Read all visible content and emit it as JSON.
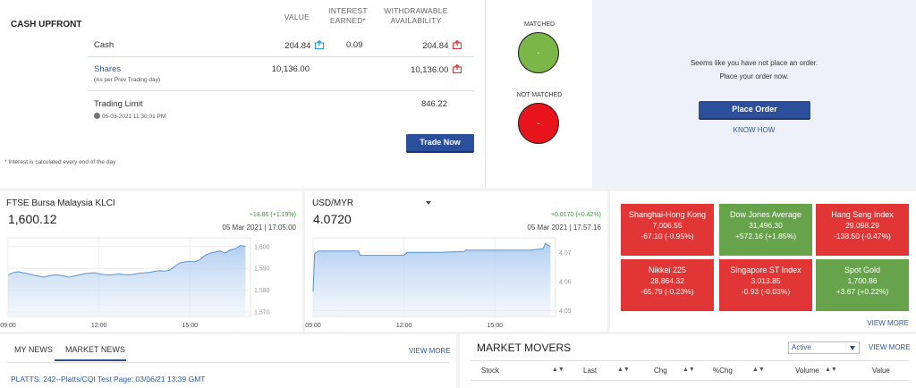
{
  "cash_upfront": {
    "title": "CASH UPFRONT",
    "col_value": "VALUE",
    "col_interest_1": "INTEREST",
    "col_interest_2": "EARNED*",
    "col_withdrawable_1": "WITHDRAWABLE",
    "col_withdrawable_2": "AVAILABILITY",
    "rows": [
      {
        "label": "Cash",
        "value": "204.84",
        "interest": "0.09",
        "available": "204.84"
      },
      {
        "label": "Shares",
        "sublabel": "(As per Prev Trading day)",
        "value": "10,136.00",
        "available": "10,136.00"
      }
    ],
    "trading_limit_label": "Trading Limit",
    "trading_limit_value": "846.22",
    "trading_limit_time": "05-03-2021 11:30:01 PM",
    "trade_now": "Trade Now",
    "footnote": "* Interest is calculated every end of the day"
  },
  "status": {
    "matched_label": "MATCHED",
    "matched_value": "-",
    "not_matched_label": "NOT MATCHED",
    "not_matched_value": "-",
    "green": "#7ab648",
    "red": "#e8141b"
  },
  "order_panel": {
    "line1": "Seems like you have not place an order.",
    "line2": "Place your order now.",
    "place_order": "Place Order",
    "know_how": "KNOW HOW"
  },
  "klci": {
    "name": "FTSE Bursa Malaysia KLCI",
    "value": "1,600.12",
    "change": "+18.86 (+1.19%)",
    "timestamp": "05 Mar 2021 | 17:05:00"
  },
  "usdmyr": {
    "name": "USD/MYR",
    "value": "4.0720",
    "change": "+0.0170 (+0.42%)",
    "timestamp": "05 Mar 2021 | 17:57:16"
  },
  "chart_data": [
    {
      "type": "area",
      "title": "FTSE Bursa Malaysia KLCI",
      "xlabel": "",
      "ylabel": "",
      "x_ticks": [
        "09:00",
        "12:00",
        "15:00"
      ],
      "y_ticks": [
        1570,
        1580,
        1590,
        1600
      ],
      "ylim": [
        1568,
        1604
      ],
      "x_minutes": [
        0,
        10,
        20,
        30,
        40,
        50,
        60,
        70,
        80,
        90,
        100,
        110,
        120,
        130,
        140,
        150,
        160,
        170,
        180,
        190,
        200,
        210,
        220,
        230,
        240,
        250,
        260,
        270,
        280,
        290,
        300,
        310,
        320,
        330,
        340,
        350,
        360,
        370,
        380,
        390,
        400,
        410,
        420,
        430,
        440,
        450,
        460,
        470
      ],
      "values": [
        1587,
        1588,
        1588.5,
        1588,
        1587.5,
        1587,
        1586.5,
        1586,
        1586.5,
        1587,
        1587,
        1586.5,
        1586,
        1586.5,
        1587,
        1587.5,
        1587.8,
        1588,
        1587.6,
        1587.2,
        1587,
        1587.2,
        1587.5,
        1587.2,
        1587,
        1587.4,
        1587.8,
        1588,
        1588.2,
        1588.6,
        1589,
        1588.8,
        1589.2,
        1591,
        1592.5,
        1593,
        1593.2,
        1593,
        1594,
        1596,
        1597,
        1597.5,
        1598,
        1597,
        1598.5,
        1599,
        1600.5,
        1600.1
      ],
      "grid": true
    },
    {
      "type": "area",
      "title": "USD/MYR",
      "xlabel": "",
      "ylabel": "",
      "x_ticks": [
        "09:00",
        "12:00",
        "15:00"
      ],
      "y_ticks": [
        4.05,
        4.06,
        4.07
      ],
      "ylim": [
        4.048,
        4.075
      ],
      "x_minutes": [
        0,
        3,
        10,
        30,
        90,
        93,
        150,
        180,
        186,
        250,
        300,
        302,
        350,
        430,
        440,
        455,
        460,
        470
      ],
      "values": [
        4.0565,
        4.0695,
        4.0705,
        4.0705,
        4.0705,
        4.069,
        4.069,
        4.069,
        4.07,
        4.07,
        4.0703,
        4.0708,
        4.0708,
        4.0708,
        4.071,
        4.0712,
        4.073,
        4.072
      ],
      "grid": true
    }
  ],
  "indices": [
    {
      "name": "Shanghai-Hong Kong",
      "value": "7,006.55",
      "change": "-67.10 (-0.95%)",
      "trend": "down"
    },
    {
      "name": "Dow Jones Average",
      "value": "31,496.30",
      "change": "+572.16 (+1.85%)",
      "trend": "up"
    },
    {
      "name": "Hang Seng Index",
      "value": "29,098.29",
      "change": "-138.50 (-0.47%)",
      "trend": "down"
    },
    {
      "name": "Nikkei 225",
      "value": "28,864.32",
      "change": "-65.79 (-0.23%)",
      "trend": "down"
    },
    {
      "name": "Singapore ST Index",
      "value": "3,013.85",
      "change": "-0.93 (-0.03%)",
      "trend": "down"
    },
    {
      "name": "Spot Gold",
      "value": "1,700.86",
      "change": "+3.67 (+0.22%)",
      "trend": "up"
    }
  ],
  "indices_view_more": "VIEW MORE",
  "news": {
    "tabs": [
      "MY NEWS",
      "MARKET NEWS"
    ],
    "active_tab": "MARKET NEWS",
    "view_more": "VIEW MORE",
    "items": [
      "PLATTS: 242--Platts/CQI Test Page: 03/06/21 13:39 GMT"
    ]
  },
  "movers": {
    "title": "MARKET MOVERS",
    "filter_selected": "Active",
    "view_more": "VIEW MORE",
    "columns": [
      "Stock",
      "Last",
      "Chg",
      "%Chg",
      "Volume",
      "Value"
    ]
  },
  "colors": {
    "accent_blue": "#2b4f9a",
    "link_blue": "#2a5ba8",
    "positive_green": "#2e9e2e",
    "tile_red": "#e23535",
    "tile_green": "#67a34a"
  }
}
